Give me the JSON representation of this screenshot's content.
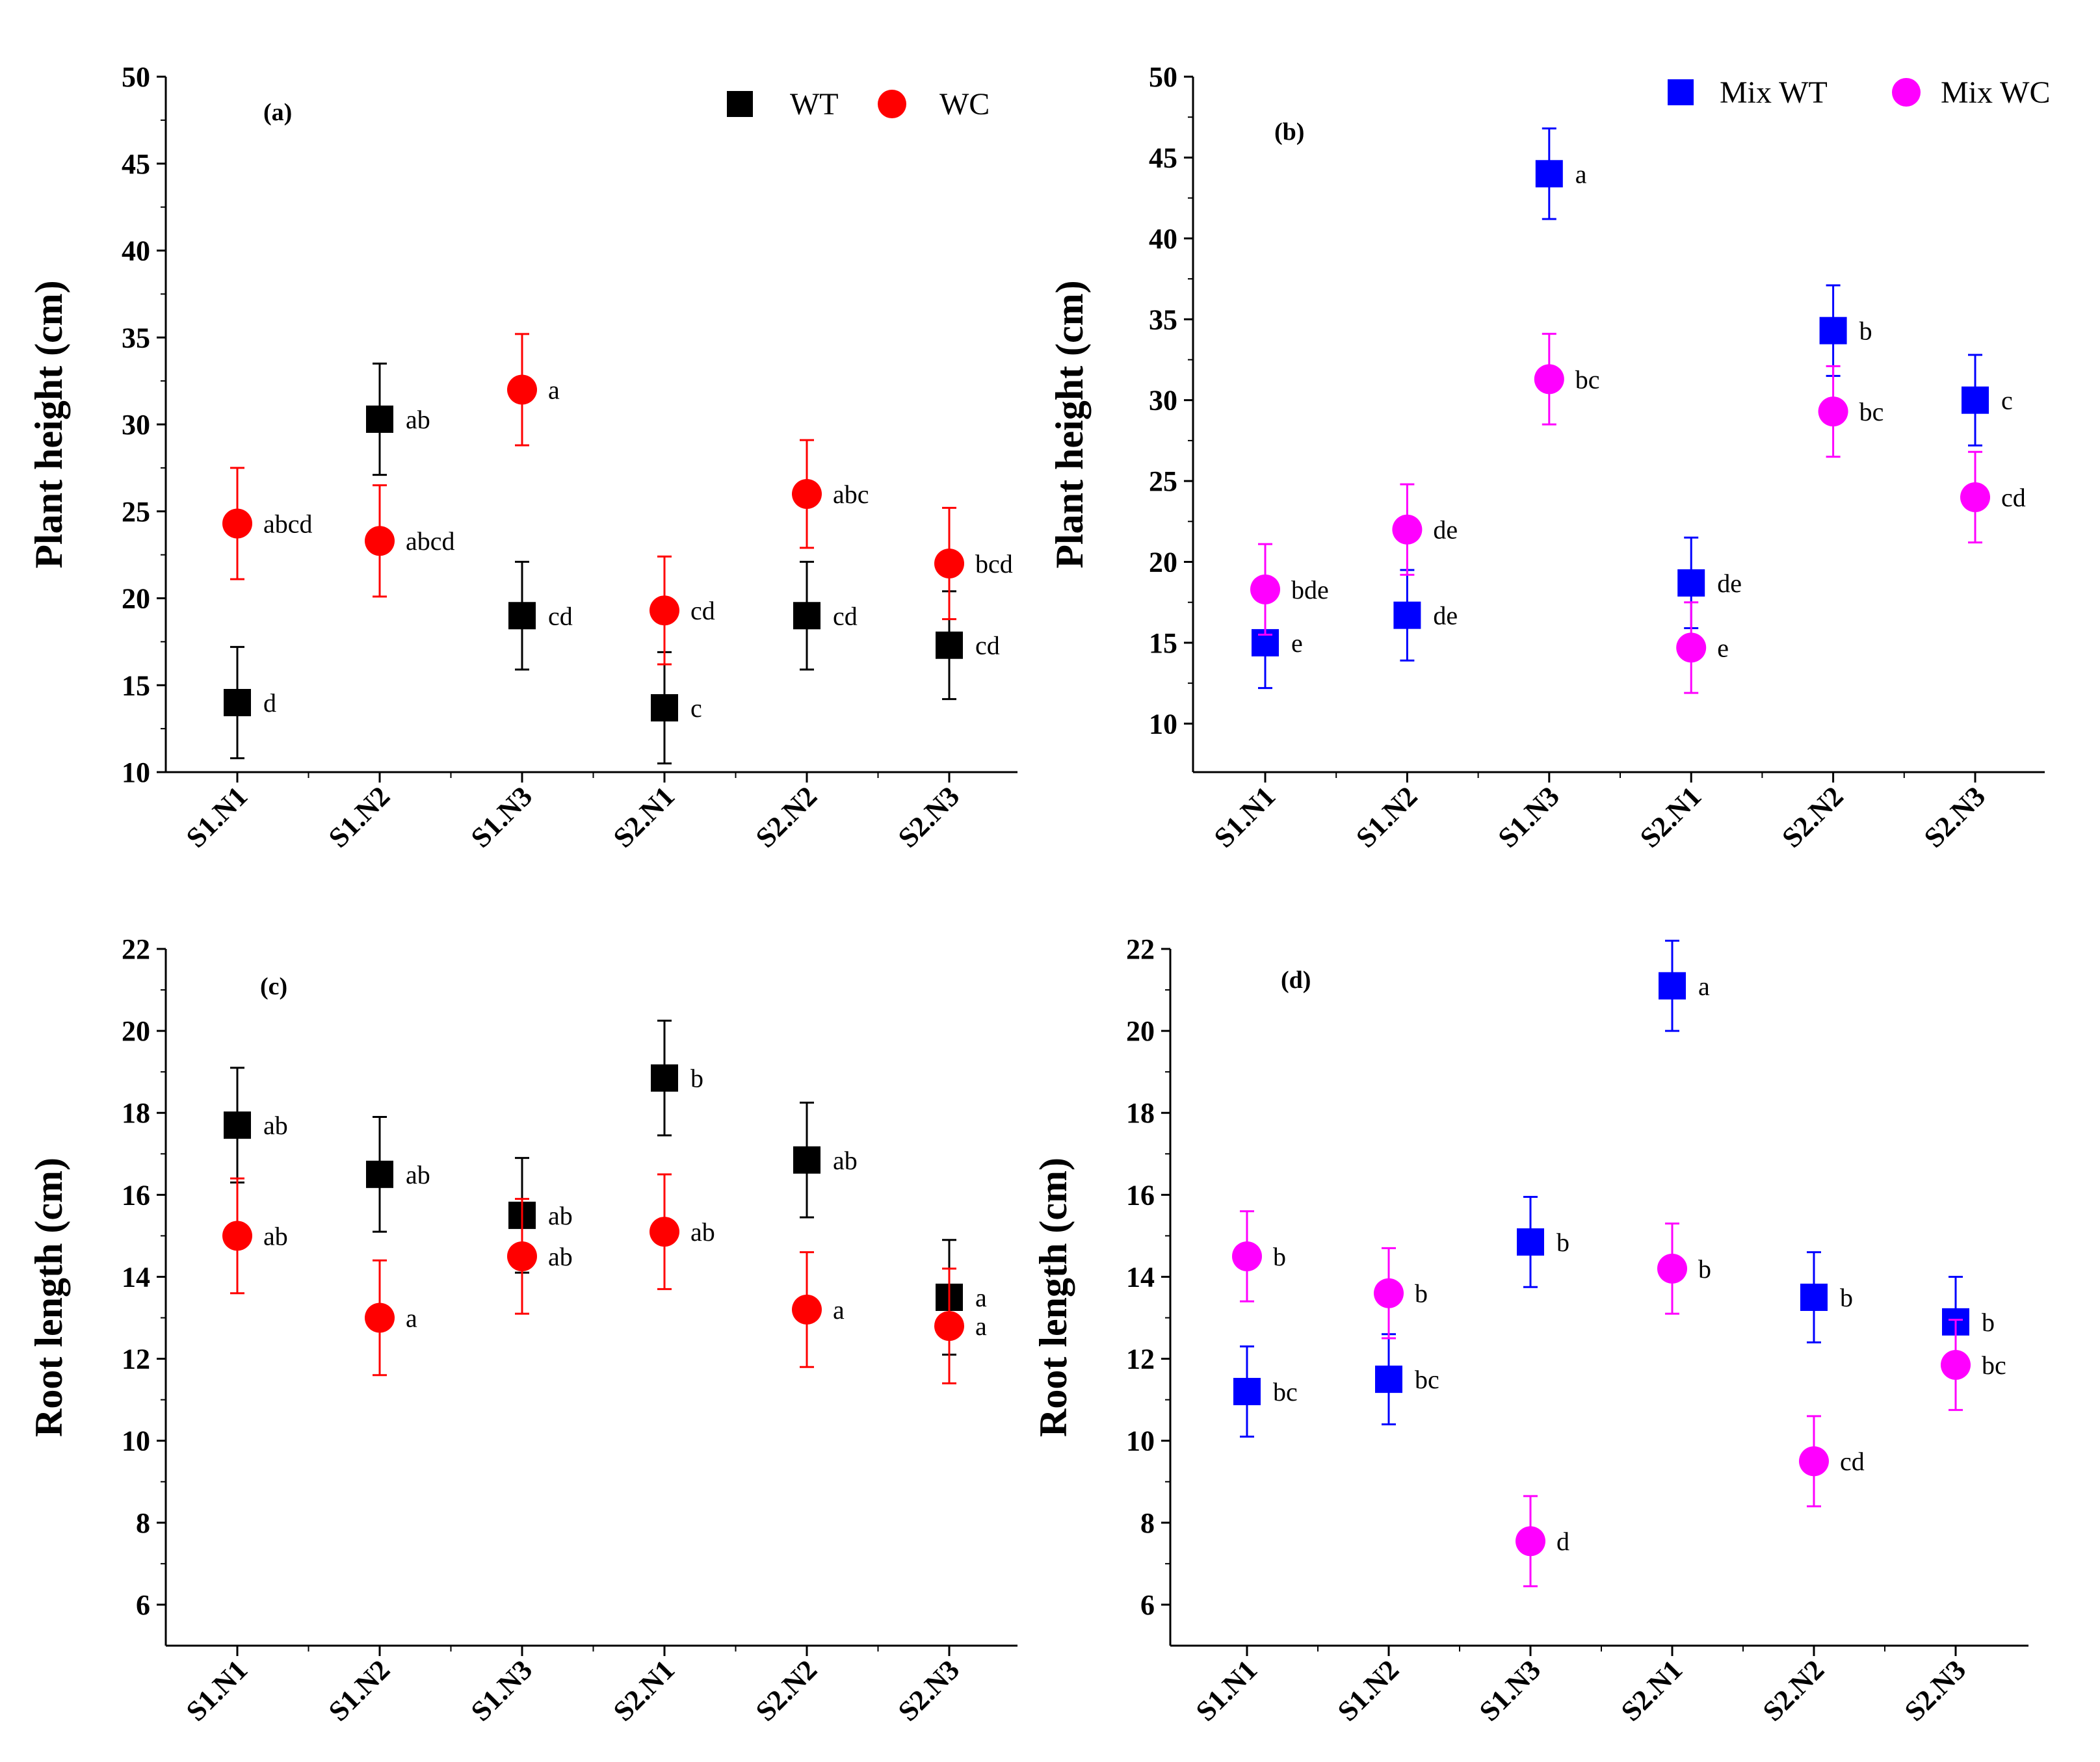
{
  "chart_data": [
    {
      "panel": "(a)",
      "type": "scatter",
      "error_bars": true,
      "categories": [
        "S1.N1",
        "S1.N2",
        "S1.N3",
        "S2.N1",
        "S2.N2",
        "S2.N3"
      ],
      "xlabel": "",
      "ylabel": "Plant height (cm)",
      "ylim": [
        10,
        50
      ],
      "yticks": [
        10,
        15,
        20,
        25,
        30,
        35,
        40,
        45,
        50
      ],
      "legend_position": "top-right",
      "series": [
        {
          "name": "WT",
          "marker": "square",
          "color": "#000000",
          "values": [
            14.0,
            30.3,
            19.0,
            13.7,
            19.0,
            17.3
          ],
          "errors": [
            3.2,
            3.2,
            3.1,
            3.2,
            3.1,
            3.1
          ],
          "labels": [
            "d",
            "ab",
            "cd",
            "c",
            "cd",
            "cd"
          ]
        },
        {
          "name": "WC",
          "marker": "circle",
          "color": "#ff0000",
          "values": [
            24.3,
            23.3,
            32.0,
            19.3,
            26.0,
            22.0
          ],
          "errors": [
            3.2,
            3.2,
            3.2,
            3.1,
            3.1,
            3.2
          ],
          "labels": [
            "abcd",
            "abcd",
            "a",
            "cd",
            "abc",
            "bcd"
          ]
        }
      ]
    },
    {
      "panel": "(b)",
      "type": "scatter",
      "error_bars": true,
      "categories": [
        "S1.N1",
        "S1.N2",
        "S1.N3",
        "S2.N1",
        "S2.N2",
        "S2.N3"
      ],
      "xlabel": "",
      "ylabel": "Plant height (cm)",
      "ylim": [
        7,
        50
      ],
      "yticks": [
        10,
        15,
        20,
        25,
        30,
        35,
        40,
        45,
        50
      ],
      "legend_position": "top-right",
      "series": [
        {
          "name": "Mix WT",
          "marker": "square",
          "color": "#0000ff",
          "values": [
            15.0,
            16.7,
            44.0,
            18.7,
            34.3,
            30.0
          ],
          "errors": [
            2.8,
            2.8,
            2.8,
            2.8,
            2.8,
            2.8
          ],
          "labels": [
            "e",
            "de",
            "a",
            "de",
            "b",
            "c"
          ]
        },
        {
          "name": "Mix WC",
          "marker": "circle",
          "color": "#ff00ff",
          "values": [
            18.3,
            22.0,
            31.3,
            14.7,
            29.3,
            24.0
          ],
          "errors": [
            2.8,
            2.8,
            2.8,
            2.8,
            2.8,
            2.8
          ],
          "labels": [
            "bde",
            "de",
            "bc",
            "e",
            "bc",
            "cd"
          ]
        }
      ]
    },
    {
      "panel": "(c)",
      "type": "scatter",
      "error_bars": true,
      "categories": [
        "S1.N1",
        "S1.N2",
        "S1.N3",
        "S2.N1",
        "S2.N2",
        "S2.N3"
      ],
      "xlabel": "",
      "ylabel": "Root length (cm)",
      "ylim": [
        5,
        22
      ],
      "yticks": [
        6,
        8,
        10,
        12,
        14,
        16,
        18,
        20,
        22
      ],
      "series": [
        {
          "name": "WT",
          "marker": "square",
          "color": "#000000",
          "values": [
            17.7,
            16.5,
            15.5,
            18.85,
            16.85,
            13.5
          ],
          "errors": [
            1.4,
            1.4,
            1.4,
            1.4,
            1.4,
            1.4
          ],
          "labels": [
            "ab",
            "ab",
            "ab",
            "b",
            "ab",
            "a"
          ]
        },
        {
          "name": "WC",
          "marker": "circle",
          "color": "#ff0000",
          "values": [
            15.0,
            13.0,
            14.5,
            15.1,
            13.2,
            12.8
          ],
          "errors": [
            1.4,
            1.4,
            1.4,
            1.4,
            1.4,
            1.4
          ],
          "labels": [
            "ab",
            "a",
            "ab",
            "ab",
            "a",
            "a"
          ]
        }
      ]
    },
    {
      "panel": "(d)",
      "type": "scatter",
      "error_bars": true,
      "categories": [
        "S1.N1",
        "S1.N2",
        "S1.N3",
        "S2.N1",
        "S2.N2",
        "S2.N3"
      ],
      "xlabel": "",
      "ylabel": "Root length (cm)",
      "ylim": [
        5,
        22
      ],
      "yticks": [
        6,
        8,
        10,
        12,
        14,
        16,
        18,
        20,
        22
      ],
      "series": [
        {
          "name": "Mix WT",
          "marker": "square",
          "color": "#0000ff",
          "values": [
            11.2,
            11.5,
            14.85,
            21.1,
            13.5,
            12.9
          ],
          "errors": [
            1.1,
            1.1,
            1.1,
            1.1,
            1.1,
            1.1
          ],
          "labels": [
            "bc",
            "bc",
            "b",
            "a",
            "b",
            "b"
          ]
        },
        {
          "name": "Mix WC",
          "marker": "circle",
          "color": "#ff00ff",
          "values": [
            14.5,
            13.6,
            7.55,
            14.2,
            9.5,
            11.85
          ],
          "errors": [
            1.1,
            1.1,
            1.1,
            1.1,
            1.1,
            1.1
          ],
          "labels": [
            "b",
            "b",
            "d",
            "b",
            "cd",
            "bc"
          ]
        }
      ]
    }
  ]
}
